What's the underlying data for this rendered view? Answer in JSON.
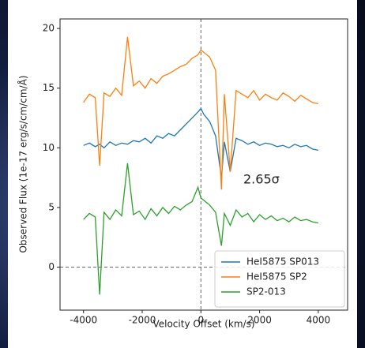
{
  "chart_data": {
    "type": "line",
    "x_label": "Velocity Offset (km/s)",
    "y_label": "Observed Flux (1e-17 erg/s/cm/cm/Å)",
    "annotation": "2.65σ",
    "x": [
      -4000,
      -3800,
      -3600,
      -3450,
      -3300,
      -3100,
      -2900,
      -2700,
      -2500,
      -2300,
      -2100,
      -1900,
      -1700,
      -1500,
      -1300,
      -1100,
      -900,
      -700,
      -500,
      -300,
      -100,
      0,
      100,
      300,
      500,
      700,
      800,
      1000,
      1200,
      1400,
      1600,
      1800,
      2000,
      2200,
      2400,
      2600,
      2800,
      3000,
      3200,
      3400,
      3600,
      3800,
      4000
    ],
    "series": [
      {
        "name": "HeI5875 SP013",
        "color": "#1f77b4",
        "values": [
          10.2,
          10.4,
          10.1,
          10.3,
          10.0,
          10.5,
          10.2,
          10.4,
          10.3,
          10.6,
          10.5,
          10.8,
          10.4,
          11.0,
          10.8,
          11.2,
          11.0,
          11.5,
          12.0,
          12.5,
          13.0,
          13.3,
          12.8,
          12.2,
          11.0,
          7.5,
          10.5,
          8.0,
          10.8,
          10.6,
          10.3,
          10.5,
          10.2,
          10.4,
          10.3,
          10.1,
          10.2,
          10.0,
          10.3,
          10.1,
          10.2,
          9.9,
          9.8
        ]
      },
      {
        "name": "HeI5875 SP2",
        "color": "#ff7f0e",
        "values": [
          13.8,
          14.5,
          14.2,
          8.5,
          14.6,
          14.3,
          15.0,
          14.4,
          19.3,
          15.2,
          15.6,
          15.0,
          15.8,
          15.4,
          16.0,
          16.2,
          16.5,
          16.8,
          17.0,
          17.5,
          17.8,
          18.2,
          18.0,
          17.6,
          16.5,
          6.5,
          14.5,
          8.0,
          14.8,
          14.5,
          14.2,
          14.8,
          14.0,
          14.5,
          14.2,
          14.0,
          14.6,
          14.3,
          13.9,
          14.4,
          14.1,
          13.8,
          13.7
        ]
      },
      {
        "name": "SP2-013",
        "color": "#2ca02c",
        "values": [
          4.0,
          4.5,
          4.2,
          -2.3,
          4.6,
          4.0,
          4.8,
          4.3,
          8.7,
          4.4,
          4.7,
          4.0,
          4.9,
          4.3,
          5.0,
          4.5,
          5.1,
          4.8,
          5.2,
          5.5,
          6.7,
          5.8,
          5.6,
          5.2,
          4.6,
          1.8,
          4.5,
          3.5,
          4.8,
          4.2,
          4.5,
          3.8,
          4.4,
          4.0,
          4.3,
          3.9,
          4.1,
          3.8,
          4.2,
          3.9,
          4.0,
          3.8,
          3.7
        ]
      }
    ],
    "xlim": [
      -4800,
      5000
    ],
    "ylim": [
      -3.6,
      20.8
    ],
    "xticks": [
      -4000,
      -2000,
      0,
      2000,
      4000
    ],
    "yticks": [
      0,
      5,
      10,
      15,
      20
    ],
    "axvline": 0,
    "axhline": 0,
    "legend": "lower right"
  }
}
